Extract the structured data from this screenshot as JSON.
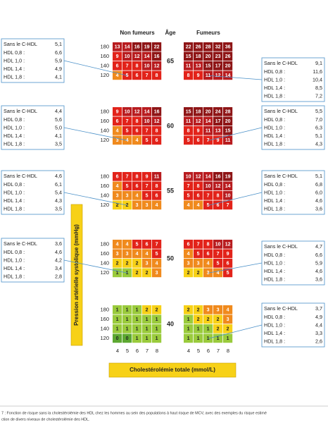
{
  "headers": {
    "non_smokers": "Non fumeurs",
    "age": "Âge",
    "smokers": "Fumeurs"
  },
  "bp_labels": [
    180,
    160,
    140,
    120
  ],
  "chol_labels": [
    4,
    5,
    6,
    7,
    8
  ],
  "y_axis_label": "Pression artérielle systolique (mmHg)",
  "x_axis_label": "Cholestérolémie totale (mmol/L)",
  "panels": [
    {
      "age": 65,
      "non_smokers": [
        [
          13,
          14,
          16,
          19,
          22
        ],
        [
          9,
          10,
          12,
          14,
          16
        ],
        [
          6,
          7,
          8,
          10,
          12
        ],
        [
          4,
          5,
          6,
          7,
          8
        ]
      ],
      "smokers": [
        [
          22,
          26,
          28,
          32,
          36
        ],
        [
          15,
          18,
          20,
          23,
          26
        ],
        [
          11,
          13,
          15,
          17,
          20
        ],
        [
          8,
          9,
          11,
          12,
          14
        ]
      ],
      "left_box": {
        "label": "Sans le C-HDL",
        "value": "5,1",
        "rows": [
          {
            "label": "HDL 0,8 :",
            "value": "6,6"
          },
          {
            "label": "HDL 1,0 :",
            "value": "5,9"
          },
          {
            "label": "HDL 1,4 :",
            "value": "4,9"
          },
          {
            "label": "HDL 1,8 :",
            "value": "4,1"
          }
        ]
      },
      "right_box": {
        "label": "Sans le C-HDL",
        "value": "9,1",
        "rows": [
          {
            "label": "HDL 0,8 :",
            "value": "11,6"
          },
          {
            "label": "HDL 1,0 :",
            "value": "10,4"
          },
          {
            "label": "HDL 1,4 :",
            "value": "8,5"
          },
          {
            "label": "HDL 1,8 :",
            "value": "7,2"
          }
        ]
      }
    },
    {
      "age": 60,
      "non_smokers": [
        [
          9,
          10,
          12,
          14,
          16
        ],
        [
          6,
          7,
          8,
          10,
          12
        ],
        [
          4,
          5,
          6,
          7,
          8
        ],
        [
          3,
          4,
          4,
          5,
          6
        ]
      ],
      "smokers": [
        [
          15,
          18,
          20,
          24,
          28
        ],
        [
          11,
          12,
          14,
          17,
          20
        ],
        [
          8,
          9,
          11,
          13,
          15
        ],
        [
          5,
          6,
          7,
          9,
          11
        ]
      ],
      "left_box": {
        "label": "Sans le C-HDL",
        "value": "4,4",
        "rows": [
          {
            "label": "HDL 0,8 :",
            "value": "5,6"
          },
          {
            "label": "HDL 1,0 :",
            "value": "5,0"
          },
          {
            "label": "HDL 1,4 :",
            "value": "4,1"
          },
          {
            "label": "HDL 1,8 :",
            "value": "3,5"
          }
        ]
      },
      "right_box": {
        "label": "Sans le C-HDL",
        "value": "5,5",
        "rows": [
          {
            "label": "HDL 0,8 :",
            "value": "7,0"
          },
          {
            "label": "HDL 1,0 :",
            "value": "6,3"
          },
          {
            "label": "HDL 1,4 :",
            "value": "5,1"
          },
          {
            "label": "HDL 1,8 :",
            "value": "4,3"
          }
        ]
      }
    },
    {
      "age": 55,
      "non_smokers": [
        [
          6,
          7,
          8,
          9,
          11
        ],
        [
          4,
          5,
          6,
          7,
          8
        ],
        [
          3,
          3,
          4,
          5,
          6
        ],
        [
          2,
          2,
          3,
          3,
          4
        ]
      ],
      "smokers": [
        [
          10,
          12,
          14,
          16,
          19
        ],
        [
          7,
          8,
          10,
          12,
          14
        ],
        [
          5,
          6,
          7,
          8,
          10
        ],
        [
          4,
          4,
          5,
          6,
          7
        ]
      ],
      "left_box": {
        "label": "Sans le C-HDL",
        "value": "4,6",
        "rows": [
          {
            "label": "HDL 0,8 :",
            "value": "6,1"
          },
          {
            "label": "HDL 1,0 :",
            "value": "5,4"
          },
          {
            "label": "HDL 1,4 :",
            "value": "4,3"
          },
          {
            "label": "HDL 1,8 :",
            "value": "3,5"
          }
        ]
      },
      "right_box": {
        "label": "Sans le C-HDL",
        "value": "5,1",
        "rows": [
          {
            "label": "HDL 0,8 :",
            "value": "6,8"
          },
          {
            "label": "HDL 1,0 :",
            "value": "6,0"
          },
          {
            "label": "HDL 1,4 :",
            "value": "4,6"
          },
          {
            "label": "HDL 1,8 :",
            "value": "3,6"
          }
        ]
      }
    },
    {
      "age": 50,
      "non_smokers": [
        [
          4,
          4,
          5,
          6,
          7
        ],
        [
          3,
          3,
          4,
          4,
          5
        ],
        [
          2,
          2,
          2,
          3,
          4
        ],
        [
          1,
          1,
          2,
          2,
          3
        ]
      ],
      "smokers": [
        [
          6,
          7,
          8,
          10,
          12
        ],
        [
          4,
          5,
          6,
          7,
          9
        ],
        [
          3,
          3,
          4,
          5,
          6
        ],
        [
          2,
          2,
          3,
          4,
          5
        ]
      ],
      "left_box": {
        "label": "Sans le C-HDL",
        "value": "3,6",
        "rows": [
          {
            "label": "HDL 0,8 :",
            "value": "4,6"
          },
          {
            "label": "HDL 1,0 :",
            "value": "4,2"
          },
          {
            "label": "HDL 1,4 :",
            "value": "3,4"
          },
          {
            "label": "HDL 1,8 :",
            "value": "2,8"
          }
        ]
      },
      "right_box": {
        "label": "Sans le C-HDL",
        "value": "4,7",
        "rows": [
          {
            "label": "HDL 0,8 :",
            "value": "6,6"
          },
          {
            "label": "HDL 1,0 :",
            "value": "5,9"
          },
          {
            "label": "HDL 1,4 :",
            "value": "4,6"
          },
          {
            "label": "HDL 1,8 :",
            "value": "3,6"
          }
        ]
      }
    },
    {
      "age": 40,
      "non_smokers": [
        [
          1,
          1,
          1,
          2,
          2
        ],
        [
          1,
          1,
          1,
          1,
          1
        ],
        [
          1,
          1,
          1,
          1,
          1
        ],
        [
          0,
          0,
          1,
          1,
          1
        ]
      ],
      "smokers": [
        [
          2,
          2,
          3,
          3,
          4
        ],
        [
          1,
          2,
          2,
          2,
          3
        ],
        [
          1,
          1,
          1,
          2,
          2
        ],
        [
          1,
          1,
          1,
          1,
          1
        ]
      ],
      "right_box": {
        "label": "Sans le C-HDL",
        "value": "3,7",
        "rows": [
          {
            "label": "HDL 0,8 :",
            "value": "4,9"
          },
          {
            "label": "HDL 1,0 :",
            "value": "4,4"
          },
          {
            "label": "HDL 1,4 :",
            "value": "3,3"
          },
          {
            "label": "HDL 1,8 :",
            "value": "2,6"
          }
        ]
      }
    }
  ],
  "caption": [
    "7 : Fonction de risque sans la cholestérolémie des HDL chez les hommes au sein des populations à haut risque de MCV, avec des exemples du risque estimé",
    "ction de divers niveaux de cholestérolémie des HDL."
  ]
}
